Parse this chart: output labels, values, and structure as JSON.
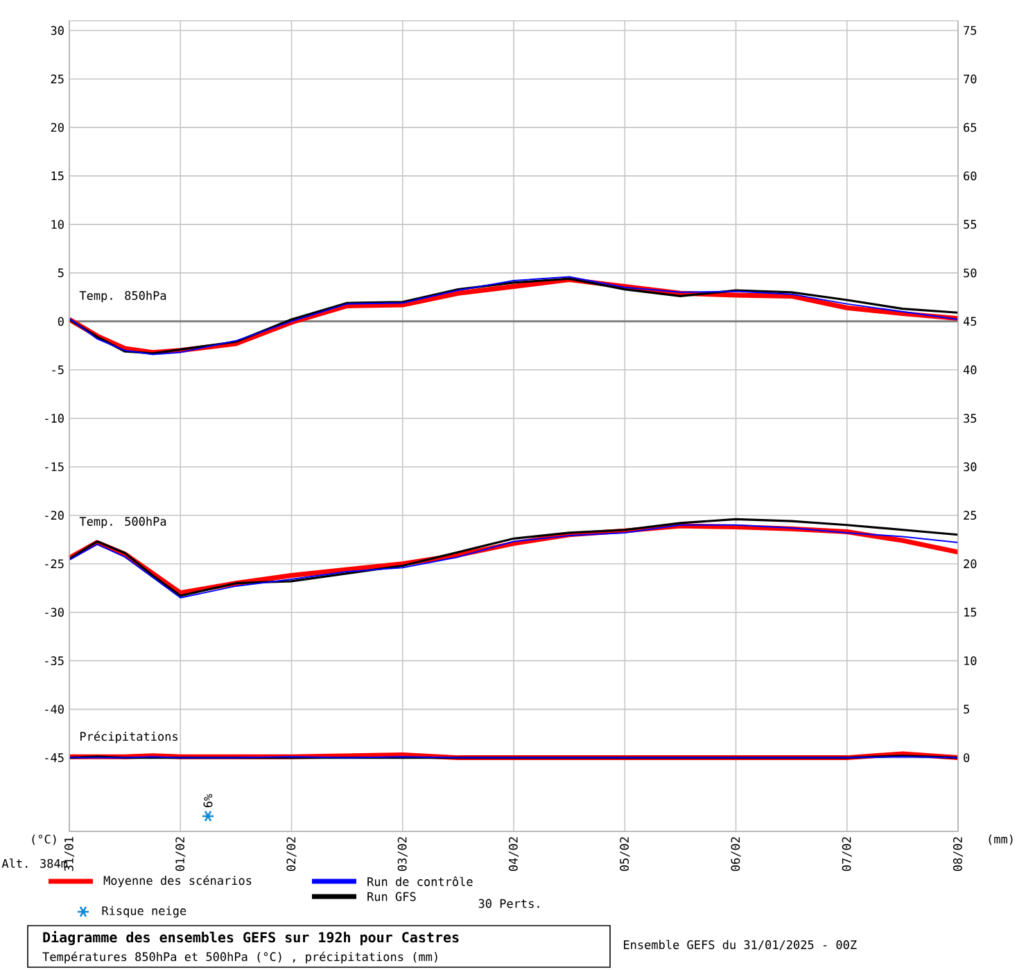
{
  "chart_data": {
    "type": "line",
    "title": "Diagramme des ensembles GEFS sur 192h pour Castres",
    "subtitle": "Températures 850hPa et 500hPa (°C) , précipitations (mm)",
    "ylabel": "(°C)",
    "y2label": "(mm)",
    "x": [
      "2025-01-31T00:00",
      "2025-01-31T06:00",
      "2025-01-31T12:00",
      "2025-01-31T18:00",
      "2025-02-01T00:00",
      "2025-02-01T12:00",
      "2025-02-02T00:00",
      "2025-02-02T12:00",
      "2025-02-03T00:00",
      "2025-02-03T12:00",
      "2025-02-04T00:00",
      "2025-02-04T12:00",
      "2025-02-05T00:00",
      "2025-02-05T12:00",
      "2025-02-06T00:00",
      "2025-02-06T12:00",
      "2025-02-07T00:00",
      "2025-02-07T12:00",
      "2025-02-08T00:00"
    ],
    "series": [
      {
        "name": "Moyenne des scénarios",
        "color": "#ff0000",
        "values": [
          0.2,
          -1.5,
          -2.8,
          -3.2,
          -3.0,
          -2.3,
          -0.1,
          1.6,
          1.7,
          2.9,
          3.6,
          4.3,
          3.6,
          2.9,
          2.7,
          2.6,
          1.4,
          0.8,
          0.3
        ]
      },
      {
        "name": "Run de contrôle",
        "color": "#0000ff",
        "values": [
          0.3,
          -1.8,
          -3.0,
          -3.4,
          -3.2,
          -2.0,
          0.0,
          1.8,
          1.9,
          3.2,
          4.2,
          4.6,
          3.5,
          3.0,
          3.1,
          2.8,
          1.8,
          1.0,
          0.2
        ]
      },
      {
        "name": "Run GFS",
        "color": "#000000",
        "values": [
          0.2,
          -1.6,
          -3.1,
          -3.3,
          -2.9,
          -2.1,
          0.2,
          1.9,
          2.0,
          3.3,
          4.0,
          4.4,
          3.3,
          2.6,
          3.2,
          3.0,
          2.2,
          1.3,
          0.9
        ]
      },
      {
        "color": "#ff0000",
        "values": [
          -24.4,
          -22.8,
          -24.0,
          -26.0,
          -28.0,
          -27.0,
          -26.2,
          -25.6,
          -25.0,
          -24.1,
          -22.9,
          -22.0,
          -21.6,
          -21.1,
          -21.2,
          -21.4,
          -21.7,
          -22.6,
          -23.8
        ]
      },
      {
        "color": "#0000ff",
        "values": [
          -24.6,
          -23.0,
          -24.3,
          -26.4,
          -28.5,
          -27.3,
          -26.6,
          -25.8,
          -25.4,
          -24.3,
          -22.7,
          -22.1,
          -21.8,
          -21.0,
          -21.0,
          -21.3,
          -21.8,
          -22.2,
          -22.8
        ]
      },
      {
        "color": "#000000",
        "values": [
          -24.5,
          -22.7,
          -23.9,
          -26.2,
          -28.3,
          -27.0,
          -26.8,
          -26.0,
          -25.2,
          -23.8,
          -22.4,
          -21.8,
          -21.5,
          -20.8,
          -20.4,
          -20.6,
          -21.0,
          -21.5,
          -22.0
        ]
      },
      {
        "color": "#ff0000",
        "axis": "y2",
        "values": [
          0.1,
          0.1,
          0.1,
          0.2,
          0.1,
          0.1,
          0.1,
          0.2,
          0.3,
          0,
          0,
          0,
          0,
          0,
          0,
          0,
          0,
          0.4,
          0
        ]
      },
      {
        "color": "#0000ff",
        "axis": "y2",
        "values": [
          0,
          0,
          0,
          0.1,
          0,
          0,
          0.1,
          0,
          0.1,
          0,
          0,
          0,
          0,
          0,
          0,
          0,
          0,
          0.1,
          0
        ]
      },
      {
        "color": "#000000",
        "axis": "y2",
        "values": [
          0,
          0.1,
          0,
          0,
          0,
          0,
          0,
          0,
          0,
          0,
          0,
          0,
          0,
          0,
          0,
          0,
          0,
          0.2,
          0
        ]
      }
    ],
    "xlim": [
      "2025-01-31",
      "2025-02-08"
    ],
    "xticks": [
      {
        "value": "2025-01-31",
        "label": "31/01"
      },
      {
        "value": "2025-02-01",
        "label": "01/02"
      },
      {
        "value": "2025-02-02",
        "label": "02/02"
      },
      {
        "value": "2025-02-03",
        "label": "03/02"
      },
      {
        "value": "2025-02-04",
        "label": "04/02"
      },
      {
        "value": "2025-02-05",
        "label": "05/02"
      },
      {
        "value": "2025-02-06",
        "label": "06/02"
      },
      {
        "value": "2025-02-07",
        "label": "07/02"
      },
      {
        "value": "2025-02-08",
        "label": "08/02"
      }
    ],
    "ylim": [
      -52.6,
      31
    ],
    "yticks": [
      -45,
      -40,
      -35,
      -30,
      -25,
      -20,
      -15,
      -10,
      -5,
      0,
      5,
      10,
      15,
      20,
      25,
      30
    ],
    "y2lim": [
      -7.6,
      76
    ],
    "y2ticks": [
      0,
      5,
      10,
      15,
      20,
      25,
      30,
      35,
      40,
      45,
      50,
      55,
      60,
      65,
      70,
      75
    ],
    "ref_lines": [
      {
        "axis": "y",
        "value": 0,
        "color": "#808080"
      }
    ],
    "grid": true,
    "legend": "bottom left",
    "annotations": [
      "Temp. 850hPa",
      "Temp. 500hPa",
      "Précipitations",
      "6%",
      "Risque neige",
      "30 Perts.",
      "Alt. 384m",
      "Ensemble GEFS du 31/01/2025 - 00Z"
    ]
  }
}
